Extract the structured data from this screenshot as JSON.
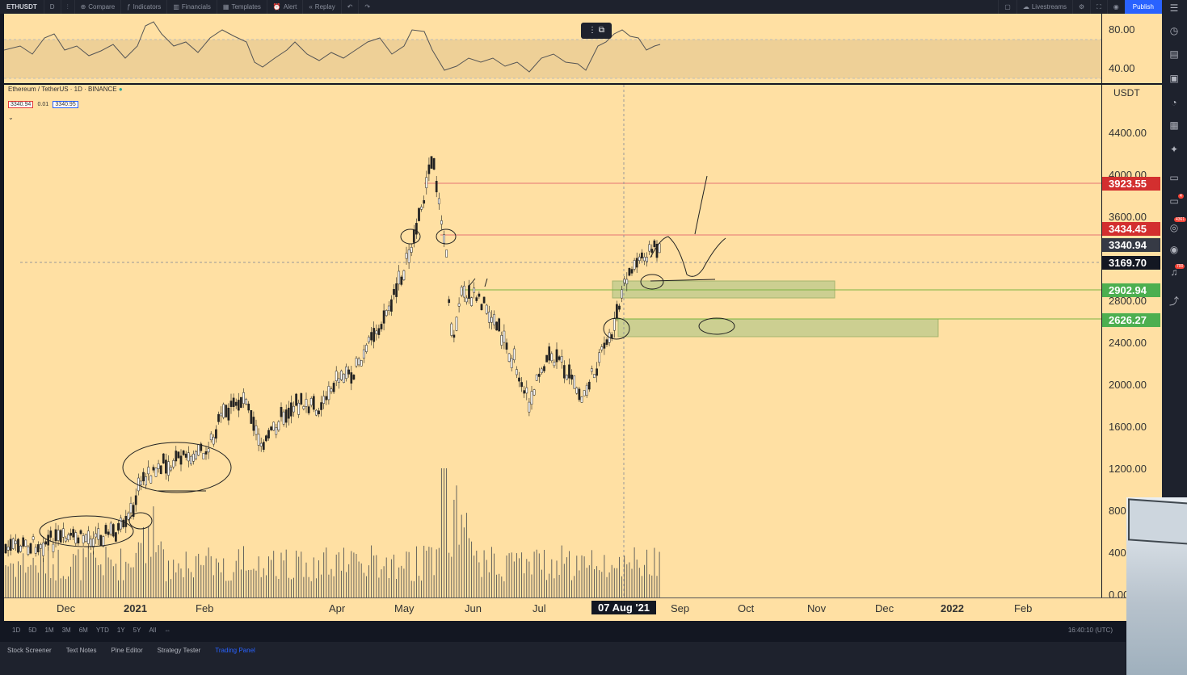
{
  "toolbar": {
    "symbol": "ETHUSDT",
    "interval": "D",
    "compare": "Compare",
    "indicators": "Indicators",
    "financials": "Financials",
    "templates": "Templates",
    "alert": "Alert",
    "replay": "Replay",
    "livestreams": "Livestreams",
    "publish": "Publish"
  },
  "legend": {
    "pair": "Ethereum / TetherUS",
    "interval": "1D",
    "exchange": "BINANCE",
    "bid": "3340.94",
    "spread": "0.01",
    "ask": "3340.95"
  },
  "rsi_axis": {
    "ticks": [
      "80.00",
      "40.00"
    ]
  },
  "price_axis": {
    "currency": "USDT",
    "ticks": [
      "4400.00",
      "4000.00",
      "3600.00",
      "2800.00",
      "2400.00",
      "2000.00",
      "1600.00",
      "1200.00",
      "800",
      "400",
      "0.00"
    ],
    "labels": [
      {
        "value": "3923.55",
        "color": "#d32f2f"
      },
      {
        "value": "3434.45",
        "color": "#d32f2f"
      },
      {
        "value": "3340.94",
        "color": "#363a45"
      },
      {
        "value": "3169.70",
        "color": "#131722"
      },
      {
        "value": "2902.94",
        "color": "#4caf50"
      },
      {
        "value": "2626.27",
        "color": "#4caf50"
      }
    ]
  },
  "time_axis": {
    "labels": [
      "Dec",
      "2021",
      "Feb",
      "Apr",
      "May",
      "Jun",
      "Jul",
      "Sep",
      "Oct",
      "Nov",
      "Dec",
      "2022",
      "Feb"
    ],
    "cursor": "07 Aug '21"
  },
  "ranges": [
    "1D",
    "5D",
    "1M",
    "3M",
    "6M",
    "YTD",
    "1Y",
    "5Y",
    "All"
  ],
  "clock": "16:40:10 (UTC)",
  "bottom_tabs": [
    "Stock Screener",
    "Text Notes",
    "Pine Editor",
    "Strategy Tester",
    "Trading Panel"
  ],
  "sidebar_badges": [
    "4",
    "4361",
    "700"
  ]
}
